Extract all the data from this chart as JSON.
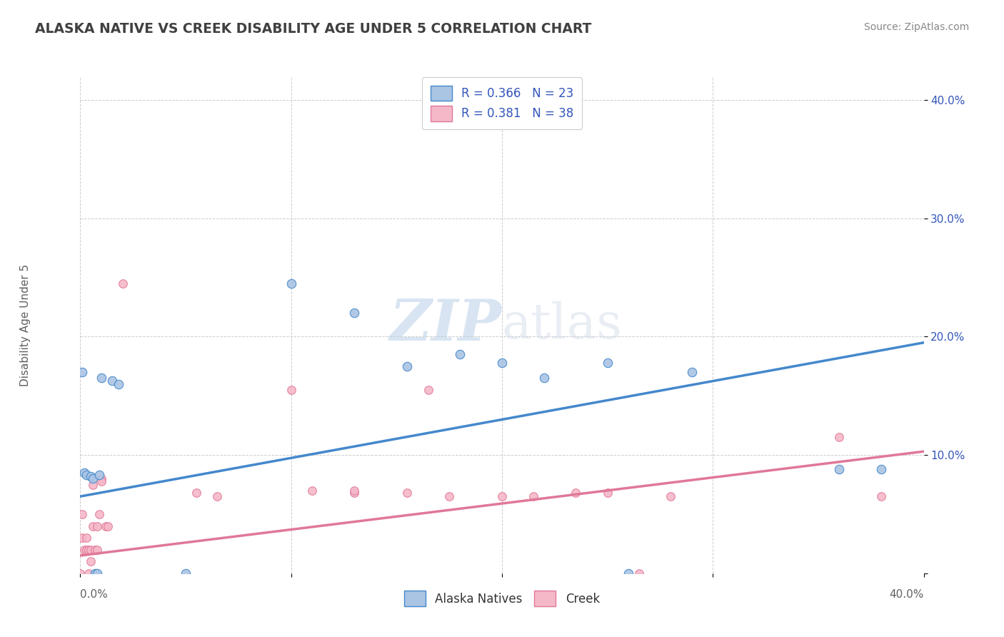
{
  "title": "ALASKA NATIVE VS CREEK DISABILITY AGE UNDER 5 CORRELATION CHART",
  "source": "Source: ZipAtlas.com",
  "ylabel": "Disability Age Under 5",
  "watermark_zip": "ZIP",
  "watermark_atlas": "atlas",
  "alaska_R": "0.366",
  "alaska_N": "23",
  "creek_R": "0.381",
  "creek_N": "38",
  "alaska_scatter_color": "#aac4e4",
  "alaska_line_color": "#4488cc",
  "creek_scatter_color": "#f5b8c8",
  "creek_line_color": "#e07898",
  "scatter_alaska": [
    [
      0.001,
      0.17
    ],
    [
      0.002,
      0.085
    ],
    [
      0.003,
      0.083
    ],
    [
      0.005,
      0.082
    ],
    [
      0.006,
      0.08
    ],
    [
      0.007,
      0.0
    ],
    [
      0.008,
      0.0
    ],
    [
      0.009,
      0.083
    ],
    [
      0.01,
      0.165
    ],
    [
      0.015,
      0.163
    ],
    [
      0.018,
      0.16
    ],
    [
      0.05,
      0.0
    ],
    [
      0.1,
      0.245
    ],
    [
      0.13,
      0.22
    ],
    [
      0.155,
      0.175
    ],
    [
      0.18,
      0.185
    ],
    [
      0.2,
      0.178
    ],
    [
      0.22,
      0.165
    ],
    [
      0.25,
      0.178
    ],
    [
      0.26,
      0.0
    ],
    [
      0.29,
      0.17
    ],
    [
      0.36,
      0.088
    ],
    [
      0.38,
      0.088
    ]
  ],
  "scatter_creek": [
    [
      0.0,
      0.0
    ],
    [
      0.001,
      0.05
    ],
    [
      0.001,
      0.03
    ],
    [
      0.002,
      0.02
    ],
    [
      0.003,
      0.03
    ],
    [
      0.003,
      0.02
    ],
    [
      0.004,
      0.0
    ],
    [
      0.004,
      0.02
    ],
    [
      0.005,
      0.01
    ],
    [
      0.005,
      0.02
    ],
    [
      0.006,
      0.04
    ],
    [
      0.006,
      0.075
    ],
    [
      0.007,
      0.02
    ],
    [
      0.008,
      0.02
    ],
    [
      0.008,
      0.04
    ],
    [
      0.009,
      0.05
    ],
    [
      0.01,
      0.08
    ],
    [
      0.01,
      0.078
    ],
    [
      0.012,
      0.04
    ],
    [
      0.013,
      0.04
    ],
    [
      0.02,
      0.245
    ],
    [
      0.055,
      0.068
    ],
    [
      0.065,
      0.065
    ],
    [
      0.1,
      0.155
    ],
    [
      0.11,
      0.07
    ],
    [
      0.13,
      0.068
    ],
    [
      0.155,
      0.068
    ],
    [
      0.165,
      0.155
    ],
    [
      0.175,
      0.065
    ],
    [
      0.2,
      0.065
    ],
    [
      0.215,
      0.065
    ],
    [
      0.235,
      0.068
    ],
    [
      0.25,
      0.068
    ],
    [
      0.265,
      0.0
    ],
    [
      0.28,
      0.065
    ],
    [
      0.36,
      0.115
    ],
    [
      0.38,
      0.065
    ],
    [
      0.13,
      0.07
    ]
  ],
  "xlim": [
    0.0,
    0.4
  ],
  "ylim": [
    0.0,
    0.42
  ],
  "xtick_vals": [
    0.0,
    0.1,
    0.2,
    0.3,
    0.4
  ],
  "xtick_labels_bottom": [
    "0.0%",
    "",
    "",
    "",
    "40.0%"
  ],
  "ytick_vals": [
    0.0,
    0.1,
    0.2,
    0.3,
    0.4
  ],
  "ytick_labels": [
    "",
    "10.0%",
    "20.0%",
    "30.0%",
    "40.0%"
  ],
  "grid_color": "#cccccc",
  "bg_color": "#ffffff",
  "title_color": "#404040",
  "source_color": "#888888",
  "stat_color": "#3355bb",
  "label_color": "#606060",
  "legend_label_color": "#333333"
}
